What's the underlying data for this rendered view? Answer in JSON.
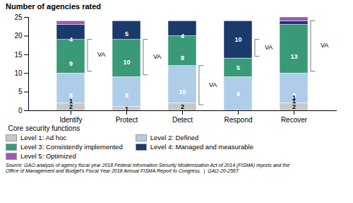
{
  "chart_data": {
    "type": "bar",
    "stacked": true,
    "title": "Number of agencies rated",
    "xlabel": "Core security functions",
    "categories": [
      "Identify",
      "Protect",
      "Detect",
      "Respond",
      "Recover"
    ],
    "series": [
      {
        "name": "Level 1: Ad hoc",
        "color": "#c8c8c8",
        "values": [
          2,
          1,
          2,
          0,
          2
        ]
      },
      {
        "name": "Level 2: Defined",
        "color": "#aecde8",
        "values": [
          8,
          8,
          10,
          9,
          8
        ]
      },
      {
        "name": "Level 3: Consistently implemented",
        "color": "#3a9a78",
        "values": [
          9,
          10,
          8,
          5,
          13
        ]
      },
      {
        "name": "Level 4: Managed and measurable",
        "color": "#1a3a6b",
        "values": [
          4,
          5,
          4,
          10,
          1
        ]
      },
      {
        "name": "Level 5: Optimized",
        "color": "#9b59b6",
        "values": [
          1,
          0,
          0,
          0,
          1
        ]
      }
    ],
    "ylim": [
      0,
      25
    ],
    "yticks": [
      0,
      5,
      10,
      15,
      20,
      25
    ],
    "grid": false,
    "data_labels": true,
    "legend": "bottom",
    "annotations": [
      {
        "text": "VA",
        "category": "Identify",
        "y_top": 19,
        "y_bottom": 10.5
      },
      {
        "text": "VA",
        "category": "Protect",
        "y_top": 19,
        "y_bottom": 9.5
      },
      {
        "text": "VA",
        "category": "Detect",
        "y_top": 12,
        "y_bottom": 1.5
      },
      {
        "text": "VA",
        "category": "Respond",
        "y_top": 19,
        "y_bottom": 14.5
      },
      {
        "text": "VA",
        "category": "Recover",
        "y_top": 24,
        "y_bottom": 10.5
      }
    ],
    "source": "Source: GAO analysis of agency fiscal year 2018 Federal Information Security Modernization Act of 2014 (FISMA) reports and the\nOffice of Management and Budget’s Fiscal Year 2018 Annual FISMA Report to Congress.  |  GAO-20-256T"
  }
}
